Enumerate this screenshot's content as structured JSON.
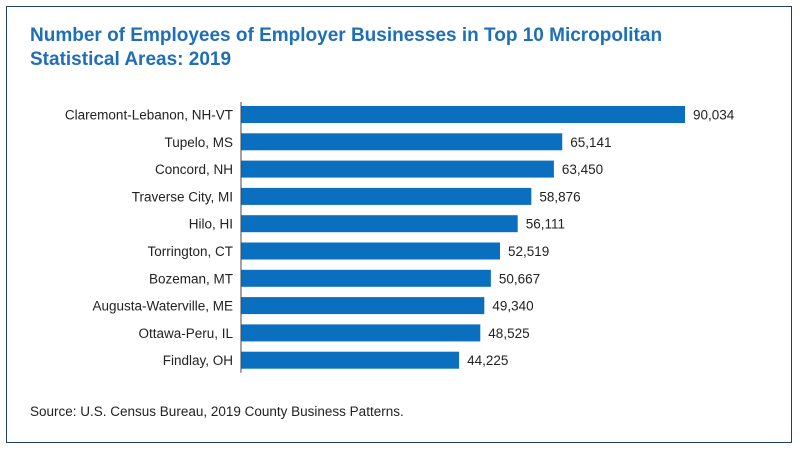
{
  "chart_data": {
    "type": "bar",
    "orientation": "horizontal",
    "title": "Number of Employees of Employer Businesses in Top 10 Micropolitan Statistical Areas: 2019",
    "categories": [
      "Claremont-Lebanon, NH-VT",
      "Tupelo, MS",
      "Concord, NH",
      "Traverse City, MI",
      "Hilo, HI",
      "Torrington, CT",
      "Bozeman, MT",
      "Augusta-Waterville, ME",
      "Ottawa-Peru, IL",
      "Findlay, OH"
    ],
    "values": [
      90034,
      65141,
      63450,
      58876,
      56111,
      52519,
      50667,
      49340,
      48525,
      44225
    ],
    "value_labels": [
      "90,034",
      "65,141",
      "63,450",
      "58,876",
      "56,111",
      "52,519",
      "50,667",
      "49,340",
      "48,525",
      "44,225"
    ],
    "xlim": [
      0,
      90034
    ],
    "grid": false,
    "bar_color": "#0b6fbf"
  },
  "source": "Source: U.S. Census Bureau, 2019 County Business Patterns."
}
